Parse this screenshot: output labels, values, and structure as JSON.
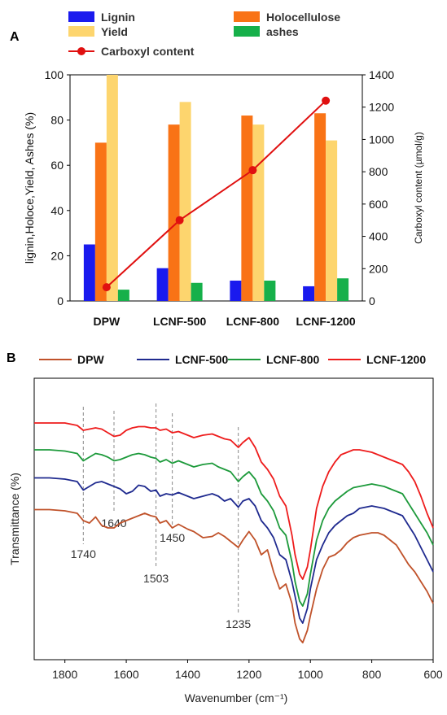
{
  "panels": {
    "a_label": "A",
    "b_label": "B"
  },
  "chart_data": [
    {
      "type": "bar",
      "panel": "A",
      "categories": [
        "DPW",
        "LCNF-500",
        "LCNF-800",
        "LCNF-1200"
      ],
      "series": [
        {
          "name": "Lignin",
          "color": "#1a1aee",
          "values": [
            25,
            14.5,
            9,
            6.5
          ]
        },
        {
          "name": "Holocellulose",
          "color": "#f97316",
          "values": [
            70,
            78,
            82,
            83
          ]
        },
        {
          "name": "Yield",
          "color": "#fdd56e",
          "values": [
            100,
            88,
            78,
            71
          ]
        },
        {
          "name": "ashes",
          "color": "#16b04a",
          "values": [
            5,
            8,
            9,
            10
          ]
        }
      ],
      "line_series": {
        "name": "Carboxyl content",
        "color": "#e01010",
        "values": [
          85,
          500,
          810,
          1240
        ]
      },
      "ylabel": "lignin,Holoce,Yield, Ashes (%)",
      "ylabel_right": "Carboxyl content (µmol/g)",
      "ylim": [
        0,
        100
      ],
      "ylim_right": [
        0,
        1400
      ],
      "yticks": [
        0,
        20,
        40,
        60,
        80,
        100
      ],
      "yticks_right": [
        0,
        200,
        400,
        600,
        800,
        1000,
        1200,
        1400
      ],
      "legend": [
        "Lignin",
        "Holocellulose",
        "Yield",
        "ashes",
        "Carboxyl content"
      ],
      "legend_position": "top",
      "grid": false
    },
    {
      "type": "line",
      "panel": "B",
      "xlabel": "Wavenumber (cm⁻¹)",
      "ylabel": "Transmittance (%)",
      "xlim": [
        1900,
        600
      ],
      "xticks": [
        1800,
        1600,
        1400,
        1200,
        1000,
        800,
        600
      ],
      "y_ticks_shown": false,
      "grid": false,
      "legend_position": "top",
      "series": [
        {
          "name": "DPW",
          "color": "#c0522a",
          "x": [
            1900,
            1850,
            1800,
            1760,
            1740,
            1720,
            1700,
            1680,
            1660,
            1640,
            1620,
            1600,
            1580,
            1560,
            1540,
            1520,
            1503,
            1490,
            1470,
            1450,
            1430,
            1400,
            1380,
            1350,
            1320,
            1300,
            1280,
            1260,
            1235,
            1220,
            1200,
            1180,
            1160,
            1140,
            1120,
            1100,
            1080,
            1060,
            1050,
            1035,
            1025,
            1010,
            1000,
            980,
            960,
            940,
            920,
            900,
            880,
            860,
            840,
            820,
            800,
            780,
            760,
            740,
            720,
            700,
            680,
            660,
            640,
            620,
            600
          ],
          "y": [
            0.545,
            0.545,
            0.54,
            0.53,
            0.5,
            0.49,
            0.515,
            0.48,
            0.47,
            0.47,
            0.49,
            0.5,
            0.51,
            0.52,
            0.53,
            0.52,
            0.515,
            0.49,
            0.5,
            0.47,
            0.485,
            0.465,
            0.455,
            0.43,
            0.435,
            0.45,
            0.435,
            0.415,
            0.39,
            0.42,
            0.455,
            0.42,
            0.36,
            0.38,
            0.29,
            0.22,
            0.24,
            0.16,
            0.08,
            0.015,
            0.0,
            0.05,
            0.11,
            0.22,
            0.3,
            0.35,
            0.36,
            0.38,
            0.41,
            0.43,
            0.44,
            0.445,
            0.45,
            0.45,
            0.44,
            0.42,
            0.4,
            0.36,
            0.32,
            0.29,
            0.25,
            0.21,
            0.16
          ]
        },
        {
          "name": "LCNF-500",
          "color": "#1f2a8f",
          "x": [
            1900,
            1850,
            1800,
            1760,
            1740,
            1720,
            1700,
            1680,
            1660,
            1640,
            1620,
            1600,
            1580,
            1560,
            1540,
            1520,
            1503,
            1490,
            1470,
            1450,
            1430,
            1400,
            1380,
            1350,
            1320,
            1300,
            1280,
            1260,
            1235,
            1220,
            1200,
            1180,
            1160,
            1140,
            1120,
            1100,
            1080,
            1060,
            1050,
            1035,
            1025,
            1010,
            1000,
            980,
            960,
            940,
            920,
            900,
            880,
            860,
            840,
            820,
            800,
            780,
            760,
            740,
            720,
            700,
            680,
            660,
            640,
            620,
            600
          ],
          "y": [
            0.675,
            0.675,
            0.67,
            0.66,
            0.625,
            0.64,
            0.655,
            0.66,
            0.65,
            0.64,
            0.63,
            0.61,
            0.62,
            0.645,
            0.64,
            0.62,
            0.625,
            0.6,
            0.61,
            0.605,
            0.615,
            0.6,
            0.59,
            0.6,
            0.61,
            0.6,
            0.58,
            0.59,
            0.555,
            0.58,
            0.59,
            0.56,
            0.5,
            0.47,
            0.43,
            0.36,
            0.34,
            0.25,
            0.19,
            0.1,
            0.08,
            0.14,
            0.22,
            0.34,
            0.4,
            0.45,
            0.48,
            0.5,
            0.52,
            0.53,
            0.55,
            0.555,
            0.56,
            0.555,
            0.55,
            0.54,
            0.53,
            0.52,
            0.48,
            0.44,
            0.39,
            0.34,
            0.29
          ]
        },
        {
          "name": "LCNF-800",
          "color": "#1d9a3b",
          "x": [
            1900,
            1850,
            1800,
            1760,
            1740,
            1720,
            1700,
            1680,
            1660,
            1640,
            1620,
            1600,
            1580,
            1560,
            1540,
            1520,
            1503,
            1490,
            1470,
            1450,
            1430,
            1400,
            1380,
            1350,
            1320,
            1300,
            1280,
            1260,
            1235,
            1220,
            1200,
            1180,
            1160,
            1140,
            1120,
            1100,
            1080,
            1060,
            1050,
            1035,
            1025,
            1010,
            1000,
            980,
            960,
            940,
            920,
            900,
            880,
            860,
            840,
            820,
            800,
            780,
            760,
            740,
            720,
            700,
            680,
            660,
            640,
            620,
            600
          ],
          "y": [
            0.79,
            0.79,
            0.785,
            0.775,
            0.745,
            0.76,
            0.775,
            0.77,
            0.76,
            0.745,
            0.75,
            0.76,
            0.77,
            0.775,
            0.77,
            0.76,
            0.755,
            0.74,
            0.75,
            0.735,
            0.745,
            0.73,
            0.72,
            0.73,
            0.735,
            0.72,
            0.71,
            0.7,
            0.66,
            0.68,
            0.7,
            0.67,
            0.61,
            0.58,
            0.54,
            0.47,
            0.44,
            0.33,
            0.25,
            0.17,
            0.15,
            0.2,
            0.28,
            0.42,
            0.5,
            0.55,
            0.58,
            0.6,
            0.62,
            0.635,
            0.64,
            0.645,
            0.65,
            0.645,
            0.64,
            0.63,
            0.62,
            0.61,
            0.57,
            0.53,
            0.49,
            0.45,
            0.4
          ]
        },
        {
          "name": "LCNF-1200",
          "color": "#ee1c1c",
          "x": [
            1900,
            1850,
            1800,
            1760,
            1740,
            1720,
            1700,
            1680,
            1660,
            1640,
            1620,
            1600,
            1580,
            1560,
            1540,
            1520,
            1503,
            1490,
            1470,
            1450,
            1430,
            1400,
            1380,
            1350,
            1320,
            1300,
            1280,
            1260,
            1235,
            1220,
            1200,
            1180,
            1160,
            1140,
            1120,
            1100,
            1080,
            1060,
            1050,
            1035,
            1025,
            1010,
            1000,
            980,
            960,
            940,
            920,
            900,
            880,
            860,
            840,
            820,
            800,
            780,
            760,
            740,
            720,
            700,
            680,
            660,
            640,
            620,
            600
          ],
          "y": [
            0.9,
            0.9,
            0.9,
            0.89,
            0.87,
            0.875,
            0.88,
            0.875,
            0.86,
            0.845,
            0.85,
            0.87,
            0.88,
            0.885,
            0.885,
            0.88,
            0.88,
            0.87,
            0.875,
            0.86,
            0.865,
            0.85,
            0.84,
            0.85,
            0.855,
            0.845,
            0.835,
            0.83,
            0.8,
            0.82,
            0.84,
            0.8,
            0.74,
            0.71,
            0.67,
            0.6,
            0.56,
            0.44,
            0.36,
            0.28,
            0.26,
            0.31,
            0.38,
            0.55,
            0.64,
            0.7,
            0.74,
            0.77,
            0.78,
            0.79,
            0.79,
            0.785,
            0.78,
            0.77,
            0.76,
            0.75,
            0.74,
            0.73,
            0.7,
            0.66,
            0.6,
            0.53,
            0.47
          ]
        }
      ],
      "annotations": [
        {
          "label": "1740",
          "x": 1740
        },
        {
          "label": "1640",
          "x": 1640
        },
        {
          "label": "1503",
          "x": 1503
        },
        {
          "label": "1450",
          "x": 1450
        },
        {
          "label": "1235",
          "x": 1235
        }
      ]
    }
  ]
}
